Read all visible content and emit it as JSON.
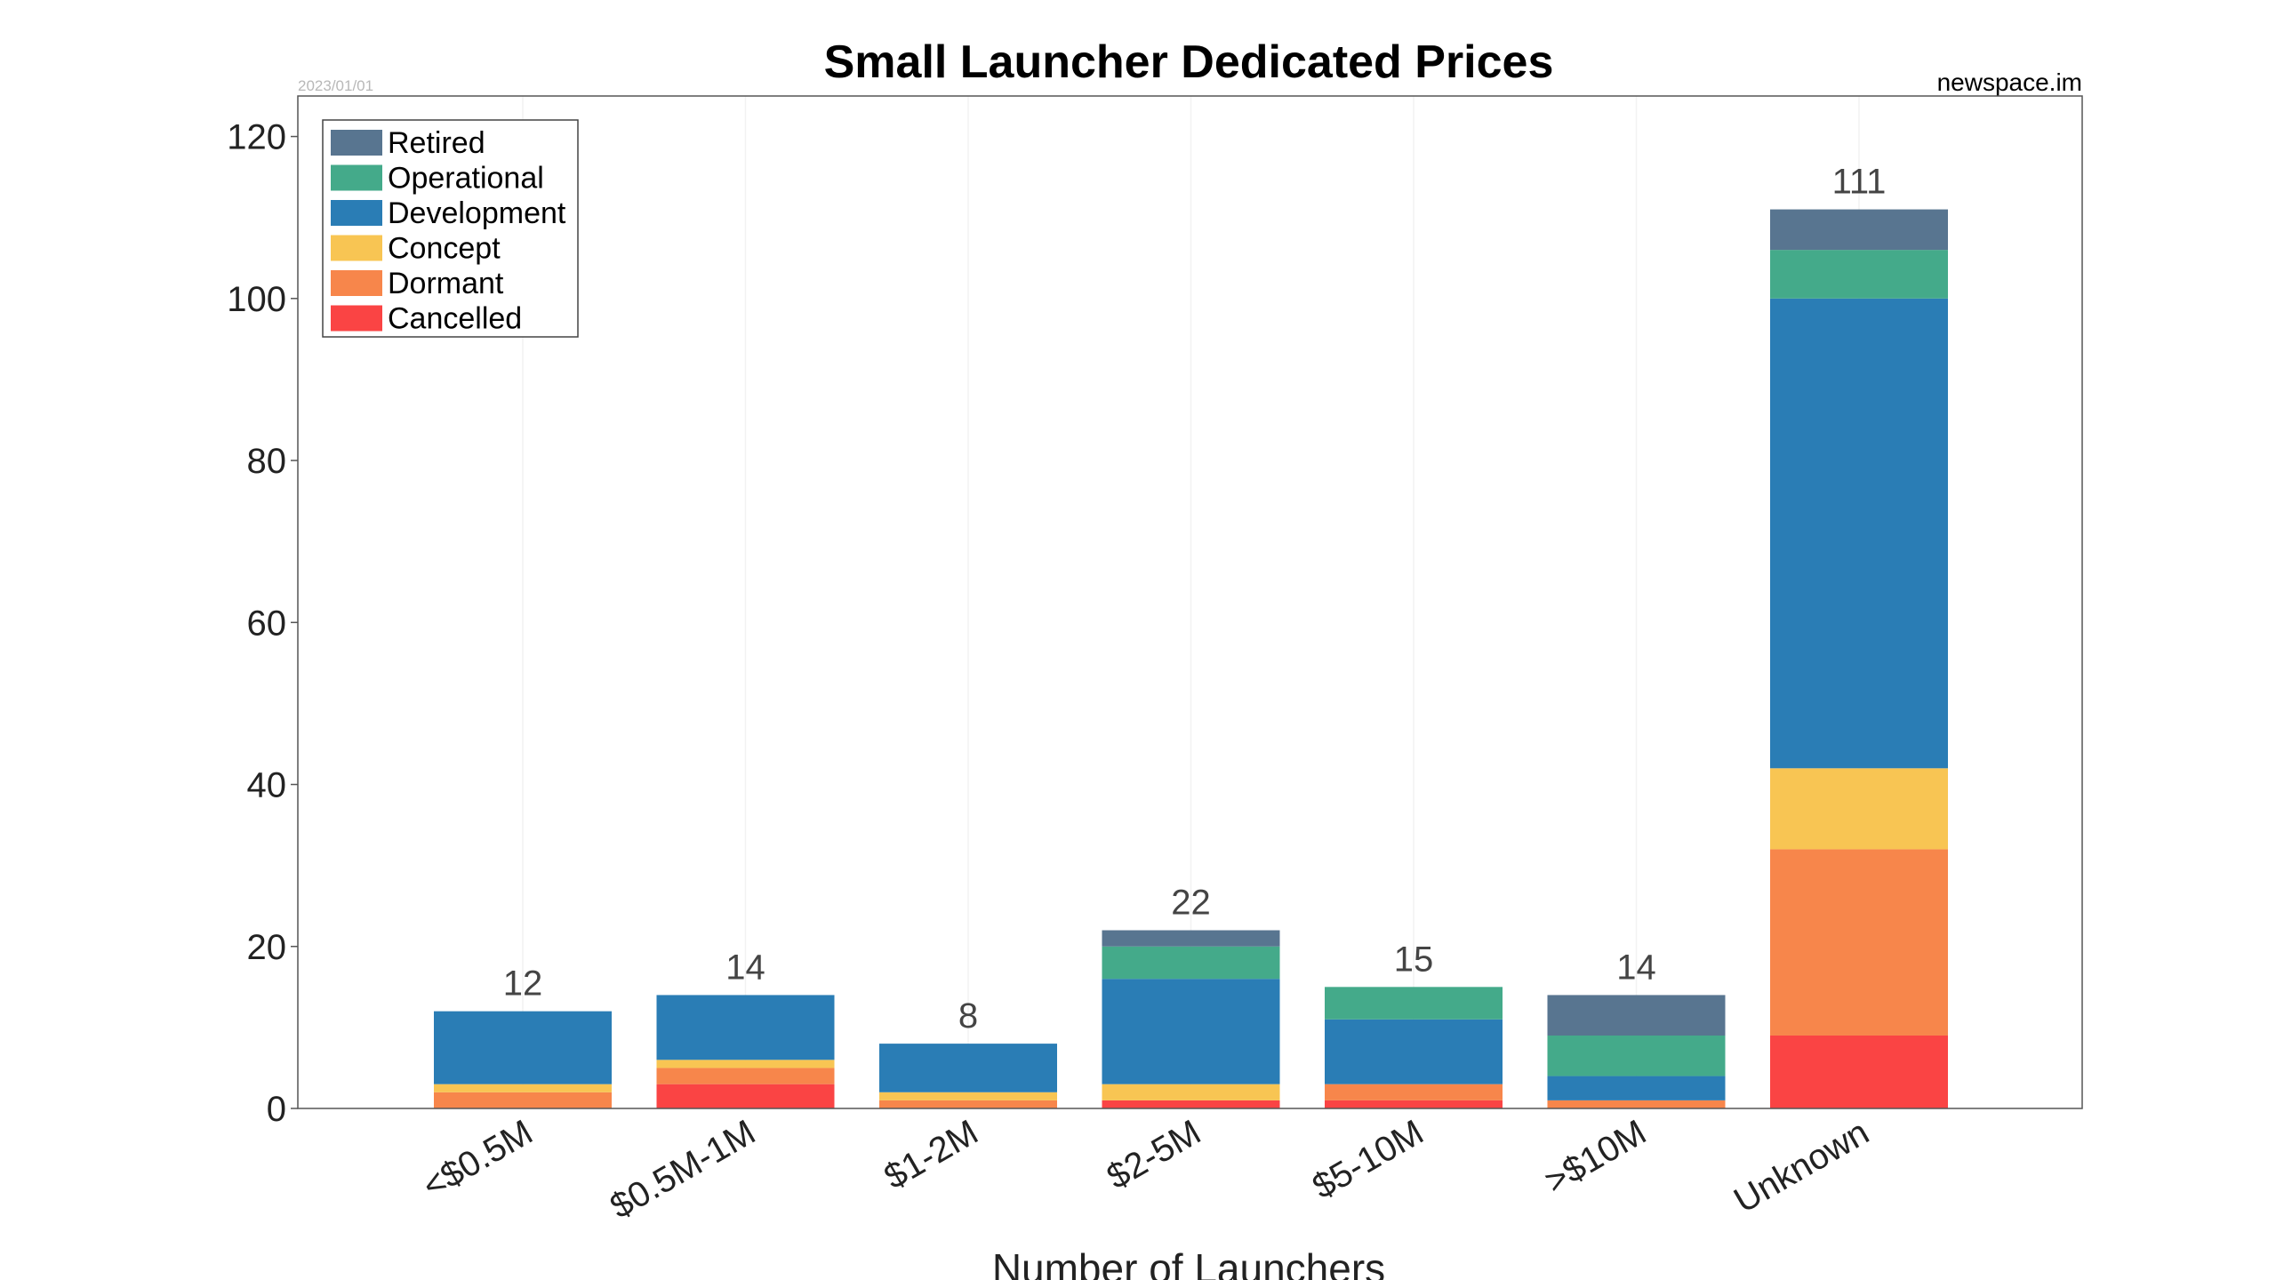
{
  "chart_data": {
    "type": "bar",
    "stacked": true,
    "title": "Small Launcher Dedicated Prices",
    "date_text": "2023/01/01",
    "source_text": "newspace.im",
    "xlabel": "Number of Launchers",
    "ylabel": "",
    "ylim": [
      0,
      125
    ],
    "yticks": [
      0,
      20,
      40,
      60,
      80,
      100,
      120
    ],
    "categories": [
      "<$0.5M",
      "$0.5M-1M",
      "$1-2M",
      "$2-5M",
      "$5-10M",
      ">$10M",
      "Unknown"
    ],
    "totals": [
      12,
      14,
      8,
      22,
      15,
      14,
      111
    ],
    "grid": true,
    "legend_position": "top-left",
    "series": [
      {
        "name": "Cancelled",
        "color": "#fa4444",
        "values": [
          0,
          3,
          0,
          1,
          1,
          0,
          9
        ]
      },
      {
        "name": "Dormant",
        "color": "#f7864b",
        "values": [
          2,
          2,
          1,
          0,
          2,
          1,
          23
        ]
      },
      {
        "name": "Concept",
        "color": "#f8c553",
        "values": [
          1,
          1,
          1,
          2,
          0,
          0,
          10
        ]
      },
      {
        "name": "Development",
        "color": "#2a7db5",
        "values": [
          9,
          8,
          6,
          13,
          8,
          3,
          58
        ]
      },
      {
        "name": "Operational",
        "color": "#44aa8a",
        "values": [
          0,
          0,
          0,
          4,
          4,
          5,
          6
        ]
      },
      {
        "name": "Retired",
        "color": "#587590",
        "values": [
          0,
          0,
          0,
          2,
          0,
          5,
          5
        ]
      }
    ]
  }
}
